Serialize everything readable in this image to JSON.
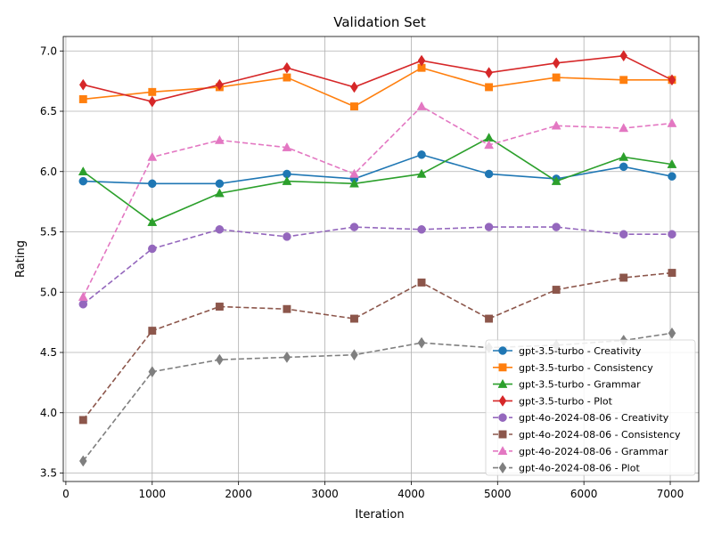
{
  "chart_data": {
    "type": "line",
    "title": "Validation Set",
    "xlabel": "Iteration",
    "ylabel": "Rating",
    "xlim": [
      -30,
      7330
    ],
    "ylim": [
      3.43,
      7.12
    ],
    "xticks": [
      0,
      1000,
      2000,
      3000,
      4000,
      5000,
      6000,
      7000
    ],
    "yticks": [
      3.5,
      4.0,
      4.5,
      5.0,
      5.5,
      6.0,
      6.5,
      7.0
    ],
    "grid": true,
    "legend_position": "lower-right",
    "x": [
      200,
      1000,
      1780,
      2560,
      3340,
      4120,
      4900,
      5680,
      6460,
      7020
    ],
    "series": [
      {
        "name": "gpt-3.5-turbo - Creativity",
        "color": "#1f77b4",
        "marker": "circle",
        "dash": "solid",
        "values": [
          5.92,
          5.9,
          5.9,
          5.98,
          5.94,
          6.14,
          5.98,
          5.94,
          6.04,
          5.96
        ]
      },
      {
        "name": "gpt-3.5-turbo - Consistency",
        "color": "#ff7f0e",
        "marker": "square",
        "dash": "solid",
        "values": [
          6.6,
          6.66,
          6.7,
          6.78,
          6.54,
          6.86,
          6.7,
          6.78,
          6.76,
          6.76
        ]
      },
      {
        "name": "gpt-3.5-turbo - Grammar",
        "color": "#2ca02c",
        "marker": "triangle",
        "dash": "solid",
        "values": [
          6.0,
          5.58,
          5.82,
          5.92,
          5.9,
          5.98,
          6.28,
          5.92,
          6.12,
          6.06
        ]
      },
      {
        "name": "gpt-3.5-turbo - Plot",
        "color": "#d62728",
        "marker": "diamond",
        "dash": "solid",
        "values": [
          6.72,
          6.58,
          6.72,
          6.86,
          6.7,
          6.92,
          6.82,
          6.9,
          6.96,
          6.76
        ]
      },
      {
        "name": "gpt-4o-2024-08-06 - Creativity",
        "color": "#9467bd",
        "marker": "circle",
        "dash": "dashed",
        "values": [
          4.9,
          5.36,
          5.52,
          5.46,
          5.54,
          5.52,
          5.54,
          5.54,
          5.48,
          5.48
        ]
      },
      {
        "name": "gpt-4o-2024-08-06 - Consistency",
        "color": "#8c564b",
        "marker": "square",
        "dash": "dashed",
        "values": [
          3.94,
          4.68,
          4.88,
          4.86,
          4.78,
          5.08,
          4.78,
          5.02,
          5.12,
          5.16
        ]
      },
      {
        "name": "gpt-4o-2024-08-06 - Grammar",
        "color": "#e377c2",
        "marker": "triangle",
        "dash": "dashed",
        "values": [
          4.96,
          6.12,
          6.26,
          6.2,
          5.98,
          6.54,
          6.22,
          6.38,
          6.36,
          6.4
        ]
      },
      {
        "name": "gpt-4o-2024-08-06 - Plot",
        "color": "#7f7f7f",
        "marker": "diamond",
        "dash": "dashed",
        "values": [
          3.6,
          4.34,
          4.44,
          4.46,
          4.48,
          4.58,
          4.54,
          4.56,
          4.6,
          4.66
        ]
      }
    ]
  }
}
